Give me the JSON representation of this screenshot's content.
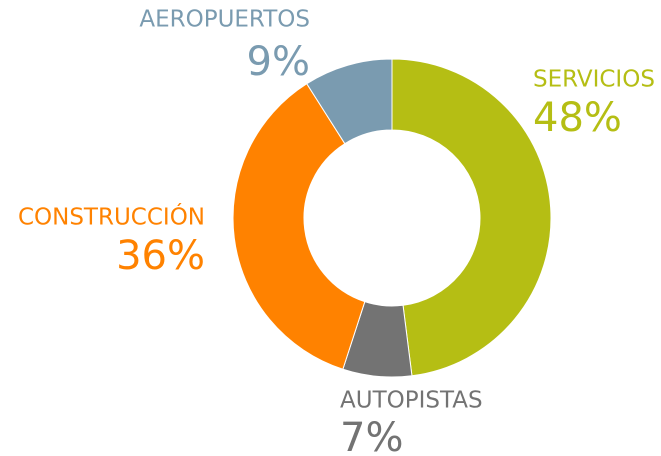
{
  "chart_data": {
    "type": "pie",
    "donut": true,
    "categories": [
      "SERVICIOS",
      "AUTOPISTAS",
      "CONSTRUCCIÓN",
      "AEROPUERTOS"
    ],
    "values": [
      48,
      7,
      36,
      9
    ],
    "value_labels": [
      "48%",
      "7%",
      "36%",
      "9%"
    ],
    "colors": [
      "#b5be14",
      "#737373",
      "#ff8200",
      "#7a9bb0"
    ]
  }
}
